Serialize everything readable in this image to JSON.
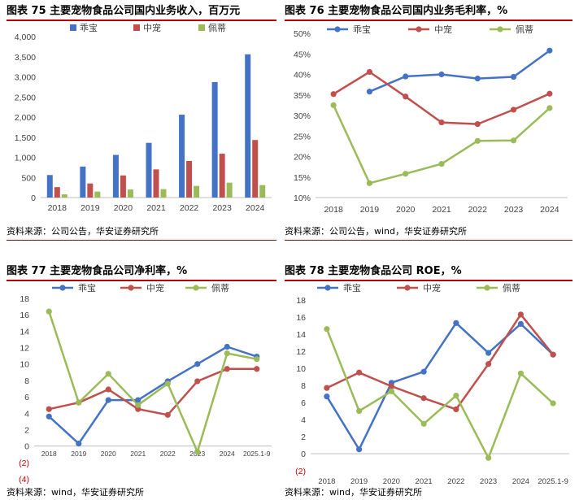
{
  "colors": {
    "guaibao": "#4472c4",
    "zhongchong": "#c0504d",
    "peidi": "#9bbb59",
    "rule": "#c00000",
    "neg": "#c00000"
  },
  "panels": [
    {
      "title": "图表 75  主要宠物食品公司国内业务收入，百万元",
      "source": "资料来源：公司公告，华安证券研究所",
      "chart_data": {
        "type": "bar",
        "title": "图表 75  主要宠物食品公司国内业务收入，百万元",
        "categories": [
          "2018",
          "2019",
          "2020",
          "2021",
          "2022",
          "2023",
          "2024"
        ],
        "ylim": [
          0,
          4000
        ],
        "yticks": [
          0,
          500,
          1000,
          1500,
          2000,
          2500,
          3000,
          3500,
          4000
        ],
        "ytick_labels": [
          "0",
          "500",
          "1,000",
          "1,500",
          "2,000",
          "2,500",
          "3,000",
          "3,500",
          "4,000"
        ],
        "legend_position": "top",
        "series": [
          {
            "name": "乖宝",
            "values": [
              560,
              770,
              1060,
              1360,
              2060,
              2870,
              3560
            ]
          },
          {
            "name": "中宠",
            "values": [
              260,
              350,
              550,
              700,
              910,
              1090,
              1430
            ]
          },
          {
            "name": "佩蒂",
            "values": [
              80,
              150,
              200,
              210,
              290,
              370,
              310
            ]
          }
        ]
      }
    },
    {
      "title": "图表 76  主要宠物食品公司国内业务毛利率，%",
      "source": "资料来源：公司公告，wind，华安证券研究所",
      "chart_data": {
        "type": "line",
        "title": "图表 76  主要宠物食品公司国内业务毛利率，%",
        "x": [
          "2018",
          "2019",
          "2020",
          "2021",
          "2022",
          "2023",
          "2024"
        ],
        "ylim": [
          10,
          50
        ],
        "yticks": [
          10,
          15,
          20,
          25,
          30,
          35,
          40,
          45,
          50
        ],
        "ytick_labels": [
          "10%",
          "15%",
          "20%",
          "25%",
          "30%",
          "35%",
          "40%",
          "45%",
          "50%"
        ],
        "legend_position": "top",
        "series": [
          {
            "name": "乖宝",
            "values": [
              null,
              35.8,
              39.5,
              40.0,
              39.0,
              39.4,
              45.8
            ]
          },
          {
            "name": "中宠",
            "values": [
              35.2,
              40.6,
              34.6,
              28.3,
              27.9,
              31.4,
              35.3
            ]
          },
          {
            "name": "佩蒂",
            "values": [
              32.5,
              13.5,
              15.8,
              18.2,
              23.8,
              23.9,
              31.8
            ]
          }
        ]
      }
    },
    {
      "title": "图表 77  主要宠物食品公司净利率，%",
      "source": "资料来源：wind，华安证券研究所",
      "chart_data": {
        "type": "line",
        "title": "图表 77  主要宠物食品公司净利率，%",
        "x": [
          "2018",
          "2019",
          "2020",
          "2021",
          "2022",
          "2023",
          "2024",
          "2025.1-9"
        ],
        "ylim": [
          -4,
          18
        ],
        "yticks": [
          -4,
          -2,
          0,
          2,
          4,
          6,
          8,
          10,
          12,
          14,
          16,
          18
        ],
        "ytick_labels": [
          "(4)",
          "(2)",
          "0",
          "2",
          "4",
          "6",
          "8",
          "10",
          "12",
          "14",
          "16",
          "18"
        ],
        "legend_position": "top",
        "series": [
          {
            "name": "乖宝",
            "values": [
              3.6,
              0.3,
              5.6,
              5.6,
              7.9,
              10.0,
              12.1,
              10.9
            ]
          },
          {
            "name": "中宠",
            "values": [
              4.5,
              5.3,
              6.9,
              4.5,
              3.8,
              7.9,
              9.4,
              9.4
            ]
          },
          {
            "name": "佩蒂",
            "values": [
              16.4,
              5.3,
              8.8,
              5.0,
              7.6,
              -0.7,
              11.3,
              10.6
            ]
          }
        ]
      }
    },
    {
      "title": "图表 78  主要宠物食品公司 ROE，%",
      "source": "资料来源：wind，华安证券研究所",
      "chart_data": {
        "type": "line",
        "title": "图表 78  主要宠物食品公司 ROE，%",
        "x": [
          "2018",
          "2019",
          "2020",
          "2021",
          "2022",
          "2023",
          "2024",
          "2025.1-9"
        ],
        "ylim": [
          -2,
          18
        ],
        "yticks": [
          -2,
          0,
          2,
          4,
          6,
          8,
          10,
          12,
          14,
          16,
          18
        ],
        "ytick_labels": [
          "(2)",
          "0",
          "2",
          "4",
          "6",
          "8",
          "10",
          "12",
          "14",
          "16",
          "18"
        ],
        "legend_position": "top",
        "series": [
          {
            "name": "乖宝",
            "values": [
              6.7,
              0.5,
              8.3,
              9.6,
              15.3,
              11.8,
              15.2,
              11.6
            ]
          },
          {
            "name": "中宠",
            "values": [
              7.7,
              9.5,
              7.9,
              6.5,
              5.2,
              10.5,
              16.3,
              11.6
            ]
          },
          {
            "name": "佩蒂",
            "values": [
              14.6,
              5.0,
              7.3,
              3.5,
              6.8,
              -0.5,
              9.4,
              5.9
            ]
          }
        ]
      }
    }
  ]
}
